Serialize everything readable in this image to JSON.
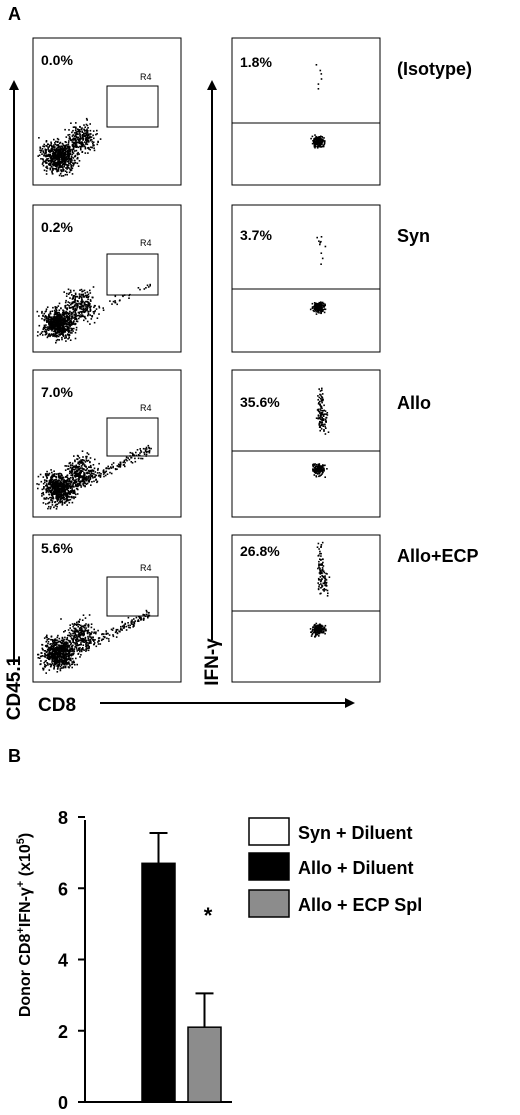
{
  "panel_a": {
    "label": "A",
    "x_axis_label": "CD8",
    "y_axis_label_left": "CD45.1",
    "y_axis_label_right": "IFN-γ",
    "gate_label": "R4",
    "rows": [
      {
        "condition": "(Isotype)",
        "left_percent": "0.0%",
        "right_percent": "1.8%"
      },
      {
        "condition": "Syn",
        "left_percent": "0.2%",
        "right_percent": "3.7%"
      },
      {
        "condition": "Allo",
        "left_percent": "7.0%",
        "right_percent": "35.6%"
      },
      {
        "condition": "Allo+ECP",
        "left_percent": "5.6%",
        "right_percent": "26.8%"
      }
    ]
  },
  "panel_b": {
    "label": "B",
    "ylabel_main": "Donor CD8",
    "ylabel_sup1": "+",
    "ylabel_mid": "IFN-γ",
    "ylabel_sup2": "+",
    "ylabel_unit": " (x10",
    "ylabel_unit_sup": "5",
    "ylabel_close": ")",
    "significance_marker": "*"
  },
  "chart_data": {
    "type": "bar",
    "title": "",
    "ylabel": "Donor CD8+IFN-γ+ (x10^5)",
    "xlabel": "",
    "ylim": [
      0,
      8
    ],
    "yticks": [
      "0",
      "2",
      "4",
      "6",
      "8"
    ],
    "series": [
      {
        "name": "Syn + Diluent",
        "values": [
          0
        ],
        "error": [
          0
        ],
        "color": "#ffffff"
      },
      {
        "name": "Allo + Diluent",
        "values": [
          6.7
        ],
        "error": [
          0.85
        ],
        "color": "#000000"
      },
      {
        "name": "Allo + ECP Spl",
        "values": [
          2.1
        ],
        "error": [
          0.95
        ],
        "color": "#8c8c8c"
      }
    ],
    "legend_position": "top-right",
    "grid": false
  }
}
